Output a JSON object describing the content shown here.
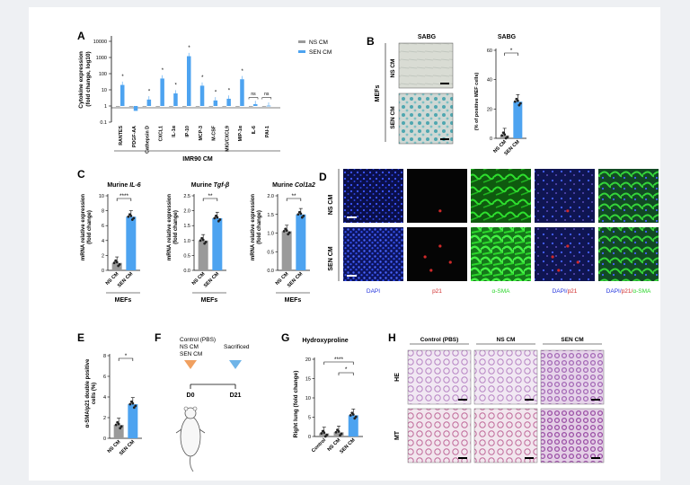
{
  "figure": {
    "panel_letters": [
      "A",
      "B",
      "C",
      "D",
      "E",
      "F",
      "G",
      "H"
    ],
    "colors": {
      "ns": "#9a9a9a",
      "sen": "#4da3f0",
      "dapi": "#2233dd",
      "p21": "#d02a2a",
      "asma": "#2bd62b",
      "orange_marker": "#f0a060",
      "blue_marker": "#6fb4e8",
      "he_stain": "#b784c4"
    }
  },
  "panelA": {
    "ylabel": "Cytokine expression\n(fold change, log10)",
    "xlabel": "IMR90 CM",
    "legend": [
      "NS CM",
      "SEN CM"
    ],
    "yticks": [
      "10000",
      "1000",
      "100",
      "10",
      "1",
      "0.1"
    ],
    "chart_data": {
      "type": "bar",
      "scale": "log10",
      "ylim": [
        0.1,
        10000
      ],
      "categories": [
        "RANTES",
        "PDGF-AA",
        "Cathepsin D",
        "CXCL1",
        "IL-1α",
        "IP-10",
        "MCP-3",
        "M-CSF",
        "MIG/CXCL9",
        "MIP-1α",
        "IL-6",
        "PAI-1"
      ],
      "series": [
        {
          "name": "NS CM",
          "values": [
            1,
            1,
            1,
            1,
            1,
            1,
            1,
            1,
            1,
            1,
            1,
            1
          ]
        },
        {
          "name": "SEN CM",
          "values": [
            20,
            0.5,
            2.5,
            50,
            6,
            1200,
            18,
            2.2,
            2.8,
            45,
            1.3,
            1.05
          ]
        }
      ],
      "annotations": [
        "*",
        "",
        "*",
        "*",
        "*",
        "*",
        "*",
        "*",
        "*",
        "*",
        "ns",
        "ns"
      ]
    }
  },
  "panelB": {
    "side_label": "MEFs",
    "image_title": "SABG",
    "row_labels": [
      "NS CM",
      "SEN CM"
    ],
    "chart_title": "SABG",
    "ylabel": "(% of positive MEF cells)",
    "yticks": [
      "60",
      "40",
      "20",
      "0"
    ],
    "sig": "*",
    "chart_data": {
      "type": "bar",
      "categories": [
        "NS CM",
        "SEN CM"
      ],
      "values": [
        2,
        25
      ],
      "ylim": [
        0,
        60
      ]
    }
  },
  "panelC": {
    "ylabel": "mRNA relative expression\n(fold change)",
    "xgroup": "MEFs",
    "subplots": [
      {
        "title_prefix": "Murine ",
        "title_gene": "IL-6",
        "sig": "****",
        "yticks": [
          "10",
          "8",
          "6",
          "4",
          "2",
          "0"
        ],
        "chart_data": {
          "type": "bar",
          "categories": [
            "NS CM",
            "SEN CM"
          ],
          "values": [
            1,
            7.2
          ],
          "ylim": [
            0,
            10
          ]
        }
      },
      {
        "title_prefix": "Murine ",
        "title_gene": "Tgf-β",
        "sig": "**",
        "yticks": [
          "2.5",
          "2.0",
          "1.5",
          "1.0",
          "0.5",
          "0.0"
        ],
        "chart_data": {
          "type": "bar",
          "categories": [
            "NS CM",
            "SEN CM"
          ],
          "values": [
            1.0,
            1.75
          ],
          "ylim": [
            0,
            2.5
          ]
        }
      },
      {
        "title_prefix": "Murine ",
        "title_gene": "Col1a2",
        "sig": "**",
        "yticks": [
          "2.0",
          "1.5",
          "1.0",
          "0.5",
          "0.0"
        ],
        "chart_data": {
          "type": "bar",
          "categories": [
            "NS CM",
            "SEN CM"
          ],
          "values": [
            1.05,
            1.5
          ],
          "ylim": [
            0,
            2.0
          ]
        }
      }
    ]
  },
  "panelD": {
    "row_labels": [
      "NS CM",
      "SEN CM"
    ],
    "col_labels": [
      "DAPI",
      "p21",
      "α-SMA",
      "DAPI/p21",
      "DAPI/p21/α-SMA"
    ]
  },
  "panelE": {
    "ylabel": "α-SMA/p21 double positive\ncells (%)",
    "yticks": [
      "8",
      "6",
      "4",
      "2",
      "0"
    ],
    "sig": "*",
    "chart_data": {
      "type": "bar",
      "categories": [
        "NS CM",
        "SEN CM"
      ],
      "values": [
        1.3,
        3.3
      ],
      "ylim": [
        0,
        8
      ]
    }
  },
  "panelF": {
    "groups": [
      "Control (PBS)",
      "NS CM",
      "SEN CM"
    ],
    "event_label": "Sacrificed",
    "day_start": "D0",
    "day_end": "D21"
  },
  "panelG": {
    "title": "Hydroxyproline",
    "ylabel": "Right lung (fold change)",
    "yticks": [
      "20",
      "15",
      "10",
      "5",
      "0"
    ],
    "sig_top": "****",
    "sig_inner": "*",
    "chart_data": {
      "type": "bar",
      "categories": [
        "Control",
        "NS CM",
        "SEN CM"
      ],
      "values": [
        0.8,
        1.1,
        5.5
      ],
      "ylim": [
        0,
        20
      ]
    }
  },
  "panelH": {
    "col_labels": [
      "Control (PBS)",
      "NS CM",
      "SEN CM"
    ],
    "row_labels": [
      "HE",
      "MT"
    ]
  }
}
